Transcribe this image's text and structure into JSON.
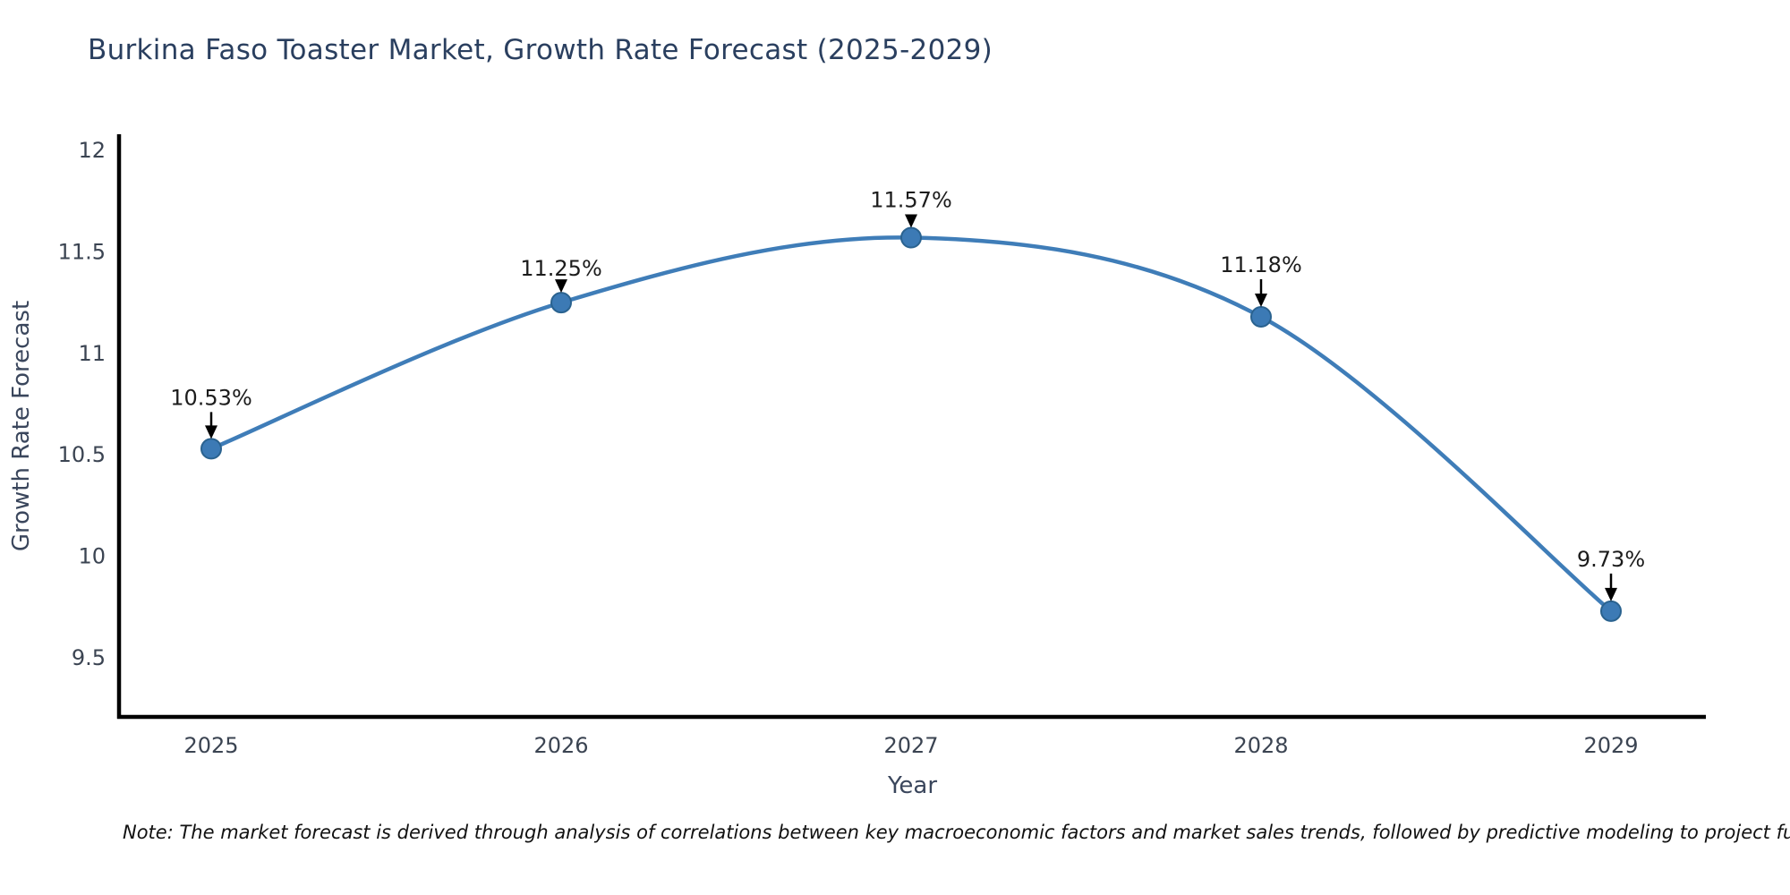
{
  "page": {
    "title": "Burkina Faso Toaster Market, Growth Rate Forecast (2025-2029)",
    "note": "Note: The market forecast is derived through analysis of correlations between key macroeconomic factors and market sales trends, followed by predictive modeling to project future sal"
  },
  "chart_data": {
    "type": "line",
    "title": "Burkina Faso Toaster Market, Growth Rate Forecast (2025-2029)",
    "xlabel": "Year",
    "ylabel": "Growth Rate Forecast",
    "x": [
      2025,
      2026,
      2027,
      2028,
      2029
    ],
    "series": [
      {
        "name": "Growth Rate Forecast",
        "values": [
          10.53,
          11.25,
          11.57,
          11.18,
          9.73
        ]
      }
    ],
    "point_labels": [
      "10.53%",
      "11.25%",
      "11.57%",
      "11.18%",
      "9.73%"
    ],
    "yticks": [
      9.5,
      10,
      10.5,
      11,
      11.5,
      12
    ],
    "ytick_labels": [
      "9.5",
      "10",
      "10.5",
      "11",
      "11.5",
      "12"
    ],
    "xtick_labels": [
      "2025",
      "2026",
      "2027",
      "2028",
      "2029"
    ],
    "ylim": [
      9.2,
      12.08
    ],
    "line_shape": "spline",
    "grid": false,
    "legend": "none",
    "colors": {
      "line": "#3f7db8",
      "marker_fill": "#3c7ab5",
      "marker_edge": "#2a628f",
      "axis_spine": "#000000",
      "title": "#2a3f5f",
      "tick_label": "#3b4452",
      "axis_label": "#3a465c",
      "annotation_text": "#1c1c1c",
      "annotation_arrow": "#000000",
      "background": "#ffffff"
    }
  }
}
